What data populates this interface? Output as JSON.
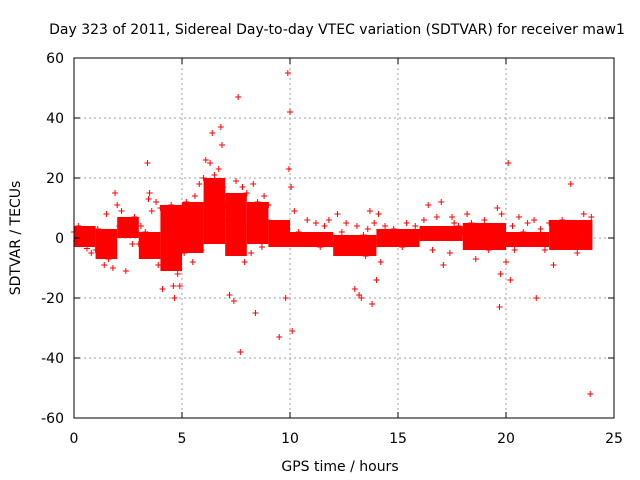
{
  "chart_data": {
    "type": "scatter",
    "title": "Day 323 of 2011, Sidereal Day-to-day VTEC variation (SDTVAR) for receiver maw1",
    "xlabel": "GPS time / hours",
    "ylabel": "SDTVAR / TECUs",
    "xlim": [
      0,
      25
    ],
    "ylim": [
      -60,
      60
    ],
    "xticks": [
      0,
      5,
      10,
      15,
      20,
      25
    ],
    "yticks": [
      -60,
      -40,
      -20,
      0,
      20,
      40,
      60
    ],
    "xtick_labels": [
      "0",
      "5",
      "10",
      "15",
      "20",
      "25"
    ],
    "ytick_labels": [
      "-60",
      "-40",
      "-20",
      "0",
      "20",
      "40",
      "60"
    ],
    "grid": true,
    "marker": "+",
    "series_color": "#ff0000",
    "series": [
      {
        "name": "SDTVAR",
        "points": [
          [
            0.0,
            2.0
          ],
          [
            0.1,
            -1.0
          ],
          [
            0.2,
            4.0
          ],
          [
            0.3,
            1.5
          ],
          [
            0.4,
            -2.0
          ],
          [
            0.5,
            3.0
          ],
          [
            0.6,
            -3.5
          ],
          [
            0.7,
            2.5
          ],
          [
            0.8,
            -5.0
          ],
          [
            0.9,
            1.0
          ],
          [
            1.0,
            -4.0
          ],
          [
            1.1,
            3.0
          ],
          [
            1.2,
            -6.0
          ],
          [
            1.3,
            -2.0
          ],
          [
            1.4,
            -9.0
          ],
          [
            1.5,
            8.0
          ],
          [
            1.6,
            -7.0
          ],
          [
            1.7,
            0.5
          ],
          [
            1.8,
            -10.0
          ],
          [
            1.9,
            15.0
          ],
          [
            2.0,
            11.0
          ],
          [
            2.1,
            4.0
          ],
          [
            2.2,
            9.0
          ],
          [
            2.3,
            6.0
          ],
          [
            2.4,
            -11.0
          ],
          [
            2.5,
            3.0
          ],
          [
            2.6,
            5.0
          ],
          [
            2.7,
            -2.0
          ],
          [
            2.8,
            7.0
          ],
          [
            2.9,
            1.0
          ],
          [
            3.0,
            -2.0
          ],
          [
            3.1,
            4.0
          ],
          [
            3.2,
            -5.0
          ],
          [
            3.3,
            2.0
          ],
          [
            3.4,
            25.0
          ],
          [
            3.45,
            13.0
          ],
          [
            3.5,
            15.0
          ],
          [
            3.6,
            9.0
          ],
          [
            3.7,
            -4.0
          ],
          [
            3.8,
            12.0
          ],
          [
            3.9,
            -9.0
          ],
          [
            4.0,
            10.0
          ],
          [
            4.1,
            -17.0
          ],
          [
            4.2,
            3.0
          ],
          [
            4.3,
            8.0
          ],
          [
            4.4,
            -6.0
          ],
          [
            4.5,
            11.0
          ],
          [
            4.6,
            -16.0
          ],
          [
            4.65,
            -20.0
          ],
          [
            4.7,
            9.0
          ],
          [
            4.8,
            -12.0
          ],
          [
            4.9,
            -16.0
          ],
          [
            5.0,
            7.0
          ],
          [
            5.1,
            -5.0
          ],
          [
            5.2,
            12.0
          ],
          [
            5.3,
            -3.0
          ],
          [
            5.4,
            10.0
          ],
          [
            5.5,
            -8.0
          ],
          [
            5.6,
            14.0
          ],
          [
            5.7,
            2.0
          ],
          [
            5.8,
            18.0
          ],
          [
            5.9,
            -4.0
          ],
          [
            6.0,
            20.0
          ],
          [
            6.1,
            26.0
          ],
          [
            6.2,
            17.0
          ],
          [
            6.3,
            25.0
          ],
          [
            6.35,
            19.0
          ],
          [
            6.4,
            35.0
          ],
          [
            6.5,
            21.0
          ],
          [
            6.6,
            12.0
          ],
          [
            6.7,
            23.0
          ],
          [
            6.8,
            37.0
          ],
          [
            6.85,
            31.0
          ],
          [
            6.9,
            17.0
          ],
          [
            7.0,
            11.0
          ],
          [
            7.1,
            6.0
          ],
          [
            7.2,
            -19.0
          ],
          [
            7.3,
            14.0
          ],
          [
            7.4,
            -21.0
          ],
          [
            7.5,
            19.0
          ],
          [
            7.6,
            47.0
          ],
          [
            7.7,
            -38.0
          ],
          [
            7.8,
            17.0
          ],
          [
            7.9,
            -8.0
          ],
          [
            8.0,
            15.0
          ],
          [
            8.1,
            2.0
          ],
          [
            8.2,
            -5.0
          ],
          [
            8.3,
            18.0
          ],
          [
            8.4,
            -25.0
          ],
          [
            8.5,
            12.0
          ],
          [
            8.6,
            8.0
          ],
          [
            8.7,
            -3.0
          ],
          [
            8.8,
            14.0
          ],
          [
            8.9,
            6.0
          ],
          [
            9.0,
            11.0
          ],
          [
            9.2,
            -2.0
          ],
          [
            9.4,
            5.0
          ],
          [
            9.5,
            -33.0
          ],
          [
            9.6,
            4.0
          ],
          [
            9.8,
            -20.0
          ],
          [
            9.9,
            55.0
          ],
          [
            10.0,
            42.0
          ],
          [
            9.95,
            23.0
          ],
          [
            10.05,
            17.0
          ],
          [
            10.1,
            -31.0
          ],
          [
            10.2,
            9.0
          ],
          [
            10.4,
            2.0
          ],
          [
            10.6,
            -2.0
          ],
          [
            10.8,
            6.0
          ],
          [
            11.0,
            -1.0
          ],
          [
            11.2,
            5.0
          ],
          [
            11.4,
            -3.0
          ],
          [
            11.6,
            4.0
          ],
          [
            11.8,
            6.0
          ],
          [
            12.0,
            -2.0
          ],
          [
            12.2,
            8.0
          ],
          [
            12.4,
            2.0
          ],
          [
            12.6,
            5.0
          ],
          [
            12.8,
            -4.0
          ],
          [
            13.0,
            -17.0
          ],
          [
            13.1,
            4.0
          ],
          [
            13.2,
            -19.0
          ],
          [
            13.3,
            -20.0
          ],
          [
            13.4,
            1.0
          ],
          [
            13.5,
            -6.0
          ],
          [
            13.6,
            3.0
          ],
          [
            13.7,
            9.0
          ],
          [
            13.8,
            -22.0
          ],
          [
            13.9,
            5.0
          ],
          [
            14.0,
            -14.0
          ],
          [
            14.1,
            8.0
          ],
          [
            14.2,
            -8.0
          ],
          [
            14.4,
            4.0
          ],
          [
            14.6,
            -2.0
          ],
          [
            14.8,
            3.0
          ],
          [
            15.0,
            1.0
          ],
          [
            15.2,
            -3.0
          ],
          [
            15.4,
            5.0
          ],
          [
            15.6,
            -2.0
          ],
          [
            15.8,
            4.0
          ],
          [
            16.0,
            2.0
          ],
          [
            16.2,
            6.0
          ],
          [
            16.4,
            11.0
          ],
          [
            16.6,
            -4.0
          ],
          [
            16.8,
            7.0
          ],
          [
            17.0,
            12.0
          ],
          [
            17.1,
            -9.0
          ],
          [
            17.2,
            3.0
          ],
          [
            17.4,
            -5.0
          ],
          [
            17.5,
            7.0
          ],
          [
            17.6,
            5.0
          ],
          [
            17.8,
            4.0
          ],
          [
            18.0,
            2.0
          ],
          [
            18.2,
            8.0
          ],
          [
            18.3,
            -3.0
          ],
          [
            18.4,
            5.0
          ],
          [
            18.6,
            -7.0
          ],
          [
            18.8,
            4.0
          ],
          [
            19.0,
            6.0
          ],
          [
            19.2,
            -4.0
          ],
          [
            19.4,
            3.0
          ],
          [
            19.6,
            10.0
          ],
          [
            19.7,
            -23.0
          ],
          [
            19.75,
            -12.0
          ],
          [
            19.8,
            8.0
          ],
          [
            20.0,
            -8.0
          ],
          [
            20.1,
            25.0
          ],
          [
            20.2,
            -14.0
          ],
          [
            20.3,
            4.0
          ],
          [
            20.4,
            -4.0
          ],
          [
            20.6,
            7.0
          ],
          [
            20.8,
            2.0
          ],
          [
            21.0,
            5.0
          ],
          [
            21.2,
            -2.0
          ],
          [
            21.3,
            6.0
          ],
          [
            21.4,
            -20.0
          ],
          [
            21.6,
            3.0
          ],
          [
            21.8,
            -4.0
          ],
          [
            22.0,
            5.0
          ],
          [
            22.2,
            -9.0
          ],
          [
            22.4,
            3.0
          ],
          [
            22.6,
            6.0
          ],
          [
            22.8,
            -2.0
          ],
          [
            23.0,
            18.0
          ],
          [
            23.1,
            4.0
          ],
          [
            23.3,
            -5.0
          ],
          [
            23.5,
            3.0
          ],
          [
            23.6,
            8.0
          ],
          [
            23.7,
            -1.0
          ],
          [
            23.8,
            5.0
          ],
          [
            23.9,
            -52.0
          ],
          [
            23.95,
            7.0
          ]
        ]
      }
    ],
    "dense_band": [
      {
        "x": [
          0.0,
          1.0
        ],
        "ymin": -3.0,
        "ymax": 4.0
      },
      {
        "x": [
          1.0,
          2.0
        ],
        "ymin": -7.0,
        "ymax": 3.0
      },
      {
        "x": [
          2.0,
          3.0
        ],
        "ymin": 0.0,
        "ymax": 7.0
      },
      {
        "x": [
          3.0,
          4.0
        ],
        "ymin": -7.0,
        "ymax": 2.0
      },
      {
        "x": [
          4.0,
          5.0
        ],
        "ymin": -11.0,
        "ymax": 11.0
      },
      {
        "x": [
          5.0,
          6.0
        ],
        "ymin": -5.0,
        "ymax": 12.0
      },
      {
        "x": [
          6.0,
          7.0
        ],
        "ymin": -2.0,
        "ymax": 20.0
      },
      {
        "x": [
          7.0,
          8.0
        ],
        "ymin": -6.0,
        "ymax": 15.0
      },
      {
        "x": [
          8.0,
          9.0
        ],
        "ymin": -2.0,
        "ymax": 12.0
      },
      {
        "x": [
          9.0,
          10.0
        ],
        "ymin": -3.0,
        "ymax": 6.0
      },
      {
        "x": [
          10.0,
          12.0
        ],
        "ymin": -3.0,
        "ymax": 2.0
      },
      {
        "x": [
          12.0,
          14.0
        ],
        "ymin": -6.0,
        "ymax": 1.0
      },
      {
        "x": [
          14.0,
          16.0
        ],
        "ymin": -3.0,
        "ymax": 3.0
      },
      {
        "x": [
          16.0,
          18.0
        ],
        "ymin": -1.0,
        "ymax": 4.0
      },
      {
        "x": [
          18.0,
          20.0
        ],
        "ymin": -4.0,
        "ymax": 5.0
      },
      {
        "x": [
          20.0,
          22.0
        ],
        "ymin": -3.0,
        "ymax": 2.0
      },
      {
        "x": [
          22.0,
          24.0
        ],
        "ymin": -4.0,
        "ymax": 6.0
      }
    ]
  }
}
